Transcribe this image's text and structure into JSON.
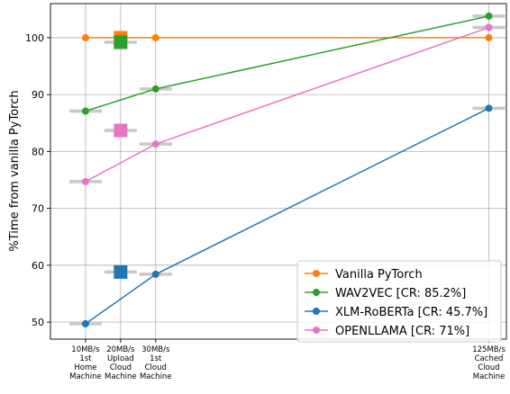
{
  "chart_data": {
    "type": "line",
    "ylabel": "%Time from vanilla PyTorch",
    "ylim": [
      47,
      106
    ],
    "yticks": [
      50,
      60,
      70,
      80,
      90,
      100
    ],
    "x_categories": [
      [
        "10MB/s",
        "1st",
        "Home",
        "Machine"
      ],
      [
        "20MB/s",
        "Upload",
        "Cloud",
        "Machine"
      ],
      [
        "30MB/s",
        "1st",
        "Cloud",
        "Machine"
      ],
      [
        "125MB/s",
        "Cached",
        "Cloud",
        "Machine"
      ]
    ],
    "x_values": [
      10,
      20,
      30,
      125
    ],
    "grid": true,
    "legend_position": "lower-right",
    "series": [
      {
        "name": "Vanilla PyTorch",
        "color": "#ff7f0e",
        "line_x": [
          10,
          30,
          125
        ],
        "line_y": [
          100,
          100,
          100
        ],
        "square": {
          "x": 20,
          "y": 100
        },
        "errbar": []
      },
      {
        "name": "WAV2VEC [CR: 85.2%]",
        "color": "#2ca02c",
        "line_x": [
          10,
          30,
          125
        ],
        "line_y": [
          87.1,
          91.0,
          103.8
        ],
        "square": {
          "x": 20,
          "y": 99.2
        },
        "errbar": [
          {
            "x": 10,
            "y": 87.1
          },
          {
            "x": 20,
            "y": 99.2
          },
          {
            "x": 30,
            "y": 91.0
          },
          {
            "x": 125,
            "y": 103.8
          }
        ]
      },
      {
        "name": "XLM-RoBERTa [CR: 45.7%]",
        "color": "#1f77b4",
        "line_x": [
          10,
          30,
          125
        ],
        "line_y": [
          49.7,
          58.4,
          87.6
        ],
        "square": {
          "x": 20,
          "y": 58.8
        },
        "errbar": [
          {
            "x": 10,
            "y": 49.7
          },
          {
            "x": 20,
            "y": 58.8
          },
          {
            "x": 30,
            "y": 58.4
          },
          {
            "x": 125,
            "y": 87.6
          }
        ]
      },
      {
        "name": "OPENLLAMA [CR: 71%]",
        "color": "#e377c2",
        "line_x": [
          10,
          30,
          125
        ],
        "line_y": [
          74.7,
          81.3,
          101.8
        ],
        "square": {
          "x": 20,
          "y": 83.7
        },
        "errbar": [
          {
            "x": 10,
            "y": 74.7
          },
          {
            "x": 20,
            "y": 83.7
          },
          {
            "x": 30,
            "y": 81.3
          },
          {
            "x": 125,
            "y": 101.8
          }
        ]
      }
    ]
  }
}
